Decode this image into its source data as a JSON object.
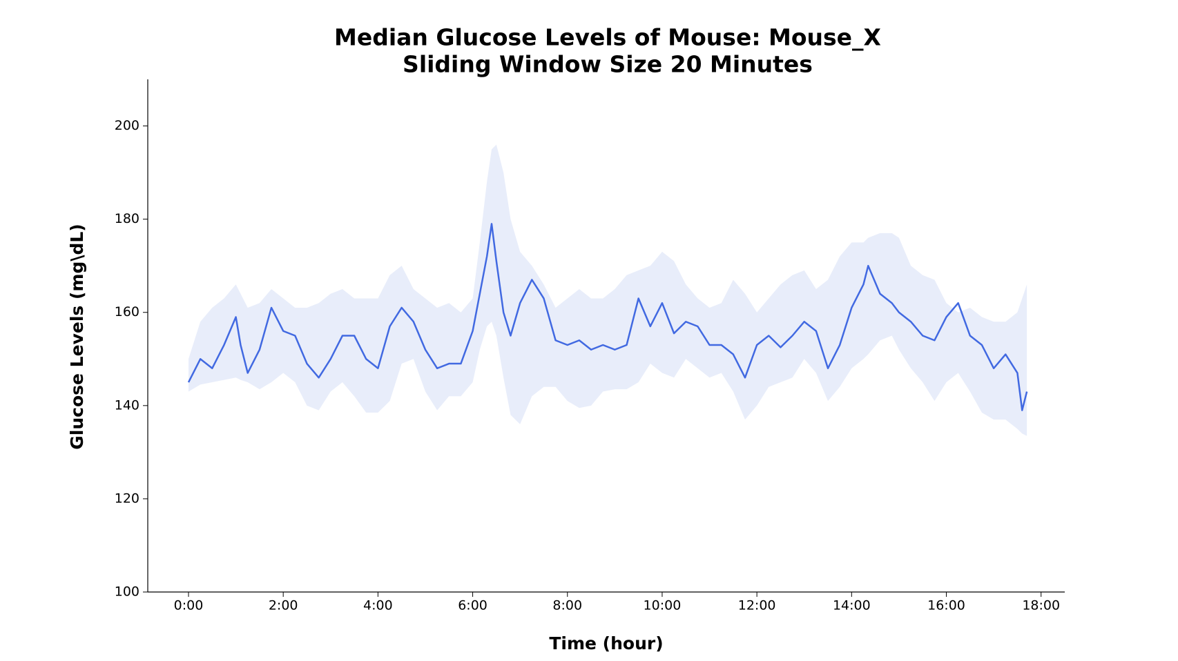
{
  "chart_data": {
    "type": "line",
    "title": [
      "Median Glucose Levels of Mouse: Mouse_X",
      "Sliding Window Size 20 Minutes"
    ],
    "x_label": "Time (hour)",
    "y_label": "Glucose Levels (mg\\dL)",
    "x": [
      0,
      0.25,
      0.5,
      0.75,
      1.0,
      1.1,
      1.25,
      1.5,
      1.75,
      2.0,
      2.25,
      2.5,
      2.75,
      3.0,
      3.25,
      3.5,
      3.75,
      4.0,
      4.25,
      4.5,
      4.75,
      5.0,
      5.25,
      5.5,
      5.75,
      6.0,
      6.15,
      6.3,
      6.4,
      6.5,
      6.65,
      6.8,
      7.0,
      7.25,
      7.5,
      7.75,
      8.0,
      8.25,
      8.5,
      8.75,
      9.0,
      9.25,
      9.5,
      9.75,
      10.0,
      10.25,
      10.5,
      10.75,
      11.0,
      11.25,
      11.5,
      11.75,
      12.0,
      12.25,
      12.5,
      12.75,
      13.0,
      13.25,
      13.5,
      13.75,
      14.0,
      14.25,
      14.35,
      14.6,
      14.85,
      15.0,
      15.25,
      15.5,
      15.75,
      16.0,
      16.25,
      16.5,
      16.75,
      17.0,
      17.25,
      17.5,
      17.6,
      17.7
    ],
    "series": [
      {
        "color": "#4169e1",
        "values": [
          145,
          150,
          148,
          153,
          159,
          153,
          147,
          152,
          161,
          156,
          155,
          149,
          146,
          150,
          155,
          155,
          150,
          148,
          157,
          161,
          158,
          152,
          148,
          149,
          149,
          156,
          164,
          172,
          179,
          171,
          160,
          155,
          162,
          167,
          163,
          154,
          153,
          154,
          152,
          153,
          152,
          153,
          163,
          157,
          162,
          155.5,
          158,
          157,
          153,
          153,
          151,
          146,
          153,
          155,
          152.5,
          155,
          158,
          156,
          148,
          153,
          161,
          166,
          170,
          164,
          162,
          160,
          158,
          155,
          154,
          159,
          162,
          155,
          153,
          148,
          151,
          147,
          139,
          143
        ]
      }
    ],
    "band": {
      "color": "#e8edfa",
      "upper": [
        150,
        158,
        161,
        163,
        166,
        164,
        161,
        162,
        165,
        163,
        161,
        161,
        162,
        164,
        165,
        163,
        163,
        163,
        168,
        170,
        165,
        163,
        161,
        162,
        160,
        163,
        175,
        188,
        195,
        196,
        190,
        180,
        173,
        170,
        166,
        161,
        163,
        165,
        163,
        163,
        165,
        168,
        169,
        170,
        173,
        171,
        166,
        163,
        161,
        162,
        167,
        164,
        160,
        163,
        166,
        168,
        169,
        165,
        167,
        172,
        175,
        175,
        176,
        177,
        177,
        176,
        170,
        168,
        167,
        162,
        160,
        161,
        159,
        158,
        158,
        160,
        163,
        166
      ],
      "lower": [
        143,
        144.5,
        145,
        145.5,
        146,
        145.5,
        145,
        143.5,
        145,
        147,
        145,
        140,
        139,
        143,
        145,
        142,
        138.5,
        138.5,
        141,
        149,
        150,
        143,
        139,
        142,
        142,
        145,
        152,
        157,
        158,
        155,
        146,
        138,
        136,
        142,
        144,
        144,
        141,
        139.5,
        140,
        143,
        143.5,
        143.5,
        145,
        149,
        147,
        146,
        150,
        148,
        146,
        147,
        143,
        137,
        140,
        144,
        145,
        146,
        150,
        147,
        141,
        144,
        148,
        150,
        151,
        154,
        155,
        152,
        148,
        145,
        141,
        145,
        147,
        143,
        138.5,
        137,
        137,
        135,
        134,
        133.5
      ]
    },
    "xlim": [
      -0.86,
      18.5
    ],
    "ylim": [
      100,
      210
    ],
    "xticks": [
      {
        "value": 0,
        "label": "0:00"
      },
      {
        "value": 2,
        "label": "2:00"
      },
      {
        "value": 4,
        "label": "4:00"
      },
      {
        "value": 6,
        "label": "6:00"
      },
      {
        "value": 8,
        "label": "8:00"
      },
      {
        "value": 10,
        "label": "10:00"
      },
      {
        "value": 12,
        "label": "12:00"
      },
      {
        "value": 14,
        "label": "14:00"
      },
      {
        "value": 16,
        "label": "16:00"
      },
      {
        "value": 18,
        "label": "18:00"
      }
    ],
    "yticks": [
      100,
      120,
      140,
      160,
      180,
      200
    ],
    "grid": false
  }
}
